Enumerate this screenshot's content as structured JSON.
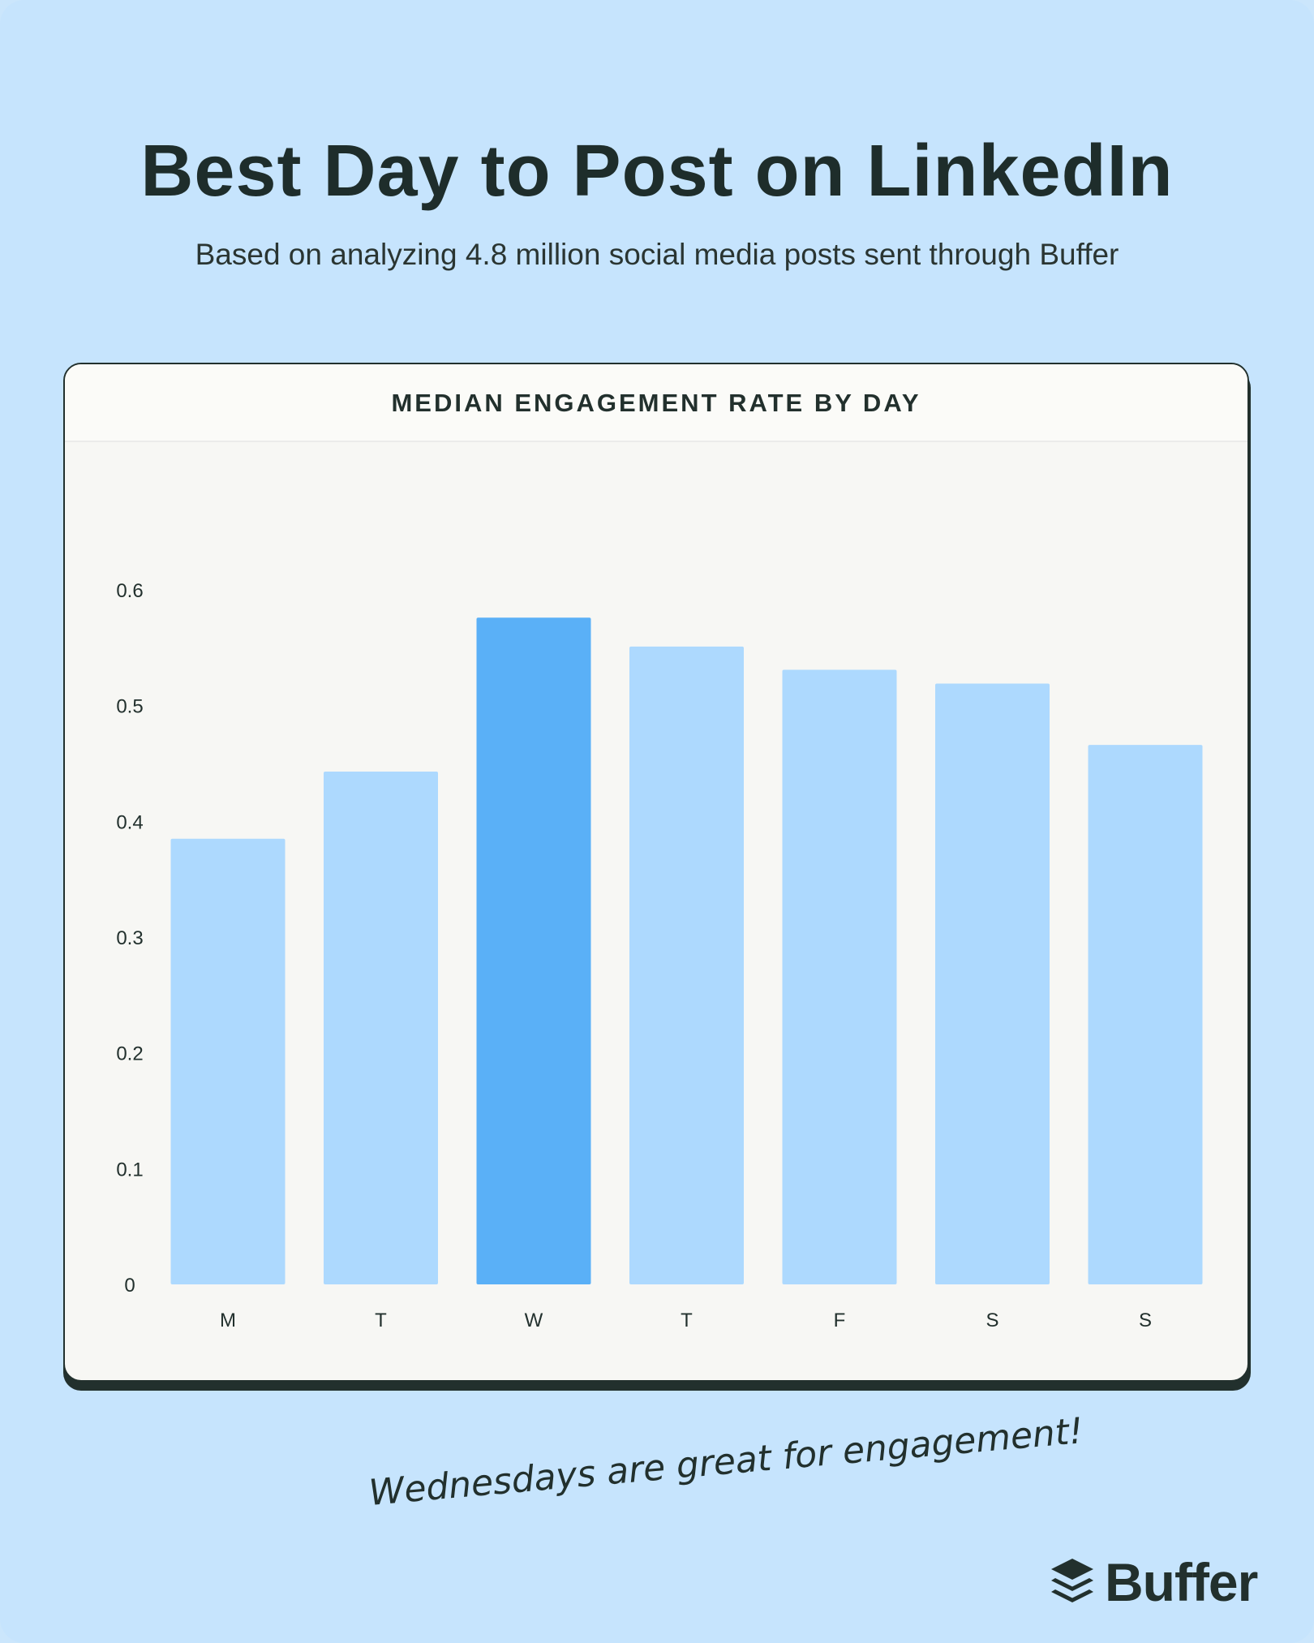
{
  "title": "Best Day to Post on LinkedIn",
  "subtitle": "Based on analyzing 4.8 million social media posts sent through Buffer",
  "note": "Wednesdays are great for engagement!",
  "brand": {
    "name": "Buffer",
    "icon": "buffer-layers-icon"
  },
  "colors": {
    "bar": "#add9fe",
    "highlight": "#5ab0f7",
    "background": "#c6e4fd"
  },
  "chart_data": {
    "type": "bar",
    "title": "MEDIAN ENGAGEMENT RATE BY DAY",
    "categories": [
      "M",
      "T",
      "W",
      "T",
      "F",
      "S",
      "S"
    ],
    "values": [
      0.385,
      0.443,
      0.576,
      0.551,
      0.531,
      0.519,
      0.466
    ],
    "highlight_index": 2,
    "yticks": [
      "0",
      "0.1",
      "0.2",
      "0.3",
      "0.4",
      "0.5",
      "0.6"
    ],
    "ylim": [
      0,
      0.6
    ],
    "xlabel": "",
    "ylabel": "",
    "grid": false,
    "legend": false
  }
}
